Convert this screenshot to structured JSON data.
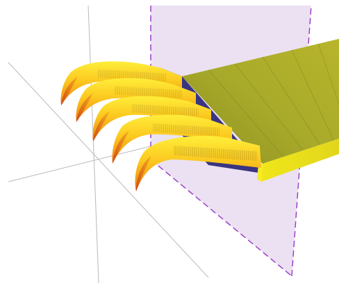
{
  "scene": {
    "background": "#ffffff",
    "axis_color": "#b9b9bf",
    "cutting_plane": {
      "fill": "#e8dcf0",
      "edge_color": "#9b3fc7"
    },
    "slab": {
      "top_color": "#a4a629",
      "side_color": "#e9e21a",
      "shadow_color": "#3a3580"
    },
    "hooks": {
      "count": 5,
      "highlight_color": "#ffe62e",
      "body_color": "#f7b81c",
      "shade_color": "#ec7a12",
      "tip_color": "#d8561a"
    }
  }
}
